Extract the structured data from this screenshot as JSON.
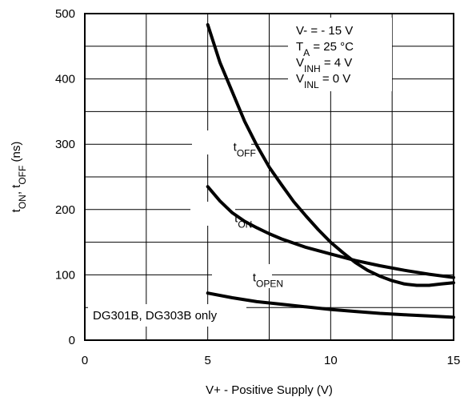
{
  "chart_data": {
    "type": "line",
    "title": "",
    "xlabel": "V+ - Positive Supply (V)",
    "ylabel": {
      "parts": [
        {
          "text": "t",
          "sub": false
        },
        {
          "text": "ON",
          "sub": true
        },
        {
          "text": ",  t",
          "sub": false
        },
        {
          "text": "OFF",
          "sub": true
        },
        {
          "text": "  (ns)",
          "sub": false
        }
      ]
    },
    "xlim": [
      0,
      15
    ],
    "ylim": [
      0,
      500
    ],
    "x_ticks": [
      "0",
      "5",
      "10",
      "15"
    ],
    "x_tick_values": [
      0,
      5,
      10,
      15
    ],
    "y_ticks": [
      "0",
      "100",
      "200",
      "300",
      "400",
      "500"
    ],
    "y_tick_values": [
      0,
      100,
      200,
      300,
      400,
      500
    ],
    "grid": true,
    "series": [
      {
        "name": "tOFF",
        "label_parts": [
          {
            "text": "t",
            "sub": false
          },
          {
            "text": "OFF",
            "sub": true
          }
        ],
        "x": [
          5,
          5.5,
          6,
          6.5,
          7,
          7.5,
          8,
          8.5,
          9,
          9.5,
          10,
          10.5,
          11,
          11.5,
          12,
          12.5,
          13,
          13.5,
          14,
          14.5,
          15
        ],
        "y": [
          483,
          425,
          380,
          335,
          298,
          265,
          238,
          212,
          190,
          169,
          150,
          134,
          119,
          107,
          98,
          91,
          86,
          84,
          84,
          86,
          88
        ]
      },
      {
        "name": "tON",
        "label_parts": [
          {
            "text": "t",
            "sub": false
          },
          {
            "text": "ON",
            "sub": true
          }
        ],
        "x": [
          5,
          5.5,
          6,
          6.5,
          7,
          7.5,
          8,
          9,
          10,
          11,
          12,
          13,
          14,
          15
        ],
        "y": [
          235,
          213,
          195,
          182,
          172,
          163,
          155,
          142,
          132,
          122,
          114,
          107,
          101,
          96
        ]
      },
      {
        "name": "tOPEN",
        "label_parts": [
          {
            "text": "t",
            "sub": false
          },
          {
            "text": "OPEN",
            "sub": true
          }
        ],
        "x": [
          5,
          6,
          7,
          8,
          9,
          10,
          11,
          12,
          13,
          14,
          15
        ],
        "y": [
          72,
          65,
          59,
          55,
          51,
          47,
          44,
          41,
          39,
          37,
          35
        ]
      }
    ],
    "conditions": [
      [
        {
          "text": "V-  = - 15 V",
          "sub": false
        }
      ],
      [
        {
          "text": "T",
          "sub": false
        },
        {
          "text": "A",
          "sub": true
        },
        {
          "text": " = 25 °C",
          "sub": false
        }
      ],
      [
        {
          "text": "V",
          "sub": false
        },
        {
          "text": "INH",
          "sub": true
        },
        {
          "text": " = 4 V",
          "sub": false
        }
      ],
      [
        {
          "text": "V",
          "sub": false
        },
        {
          "text": "INL",
          "sub": true
        },
        {
          "text": " = 0 V",
          "sub": false
        }
      ]
    ],
    "footnote": "DG301B, DG303B only"
  }
}
